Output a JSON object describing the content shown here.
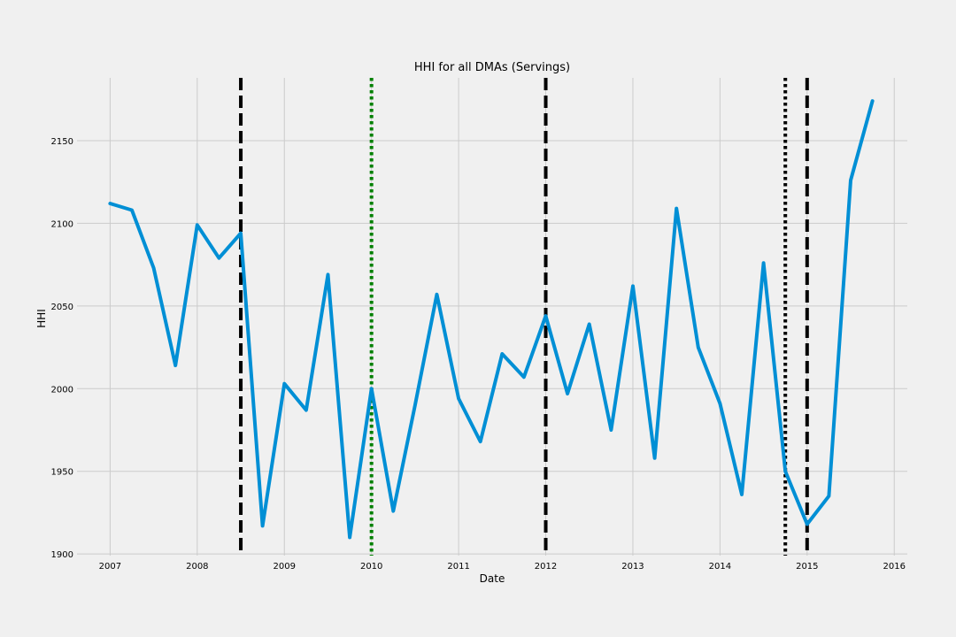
{
  "chart_data": {
    "type": "line",
    "title": "HHI for all DMAs (Servings)",
    "xlabel": "Date",
    "ylabel": "HHI",
    "xlim": [
      2006.62,
      2016.15
    ],
    "ylim": [
      1899,
      2188
    ],
    "x_ticks": [
      2007,
      2008,
      2009,
      2010,
      2011,
      2012,
      2013,
      2014,
      2015,
      2016
    ],
    "y_ticks": [
      1900,
      1950,
      2000,
      2050,
      2100,
      2150
    ],
    "grid": true,
    "series": [
      {
        "color": "#008fd5",
        "x": [
          2007.0,
          2007.25,
          2007.5,
          2007.75,
          2008.0,
          2008.25,
          2008.5,
          2008.75,
          2009.0,
          2009.25,
          2009.5,
          2009.75,
          2010.0,
          2010.25,
          2010.5,
          2010.75,
          2011.0,
          2011.25,
          2011.5,
          2011.75,
          2012.0,
          2012.25,
          2012.5,
          2012.75,
          2013.0,
          2013.25,
          2013.5,
          2013.75,
          2014.0,
          2014.25,
          2014.5,
          2014.75,
          2015.0,
          2015.25,
          2015.5,
          2015.75
        ],
        "values": [
          2112,
          2108,
          2073,
          2014,
          2099,
          2079,
          2094,
          1917,
          2003,
          1987,
          2069,
          1910,
          2000,
          1926,
          1990,
          2057,
          1994,
          1968,
          2021,
          2007,
          2044,
          1997,
          2039,
          1975,
          2062,
          1958,
          2109,
          2025,
          1991,
          1936,
          2076,
          1950,
          1918,
          1935,
          2126,
          2174
        ]
      }
    ],
    "vlines": [
      {
        "x": 2008.5,
        "style": "dashed",
        "color": "#000000"
      },
      {
        "x": 2010.0,
        "style": "dotted",
        "color": "#008000"
      },
      {
        "x": 2012.0,
        "style": "dashed",
        "color": "#000000"
      },
      {
        "x": 2014.75,
        "style": "dotted",
        "color": "#000000"
      },
      {
        "x": 2015.0,
        "style": "dashed",
        "color": "#000000"
      }
    ]
  }
}
